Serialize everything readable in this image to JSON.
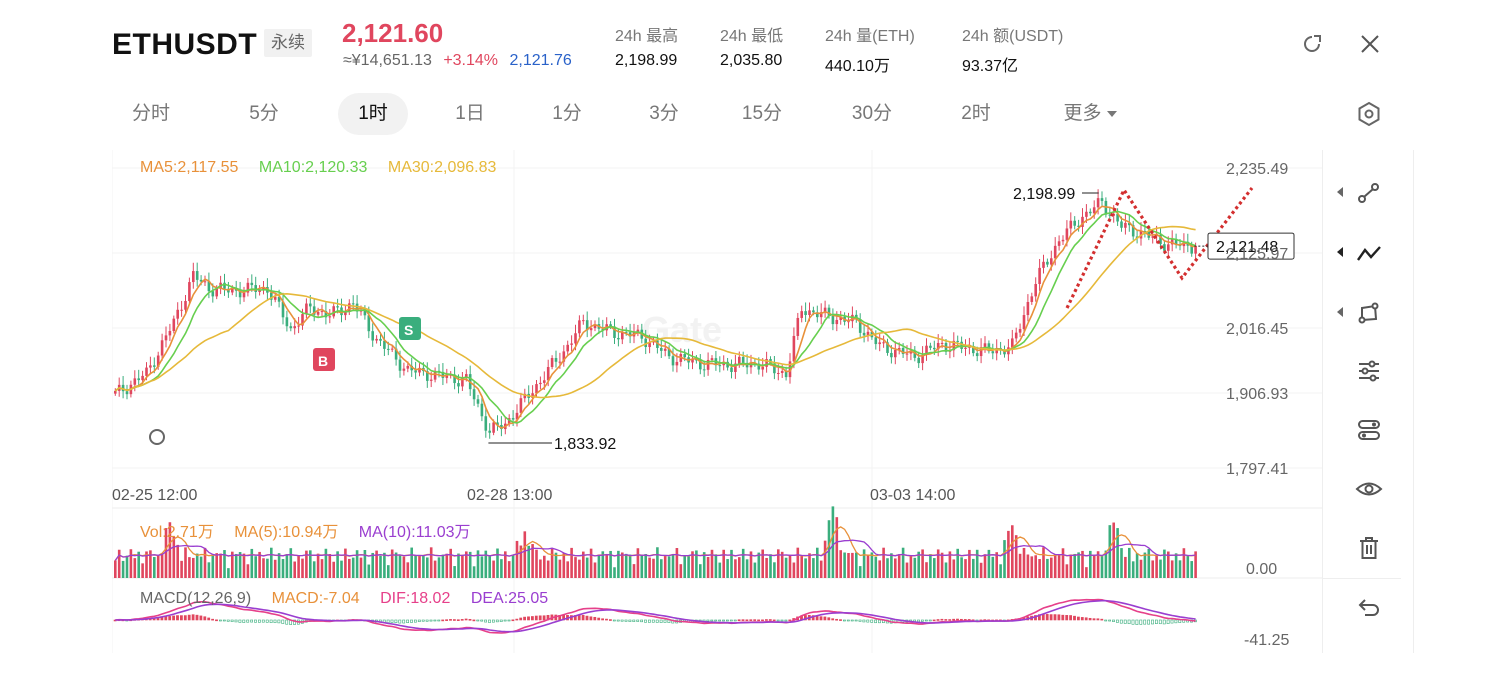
{
  "header": {
    "symbol": "ETHUSDT",
    "contract_tag": "永续",
    "last_price": "2,121.60",
    "cny_price": "≈¥14,651.13",
    "change_pct": "+3.14%",
    "mark_price": "2,121.76",
    "stats": [
      {
        "label": "24h  最高",
        "value": "2,198.99"
      },
      {
        "label": "24h  最低",
        "value": "2,035.80"
      },
      {
        "label": "24h  量(ETH)",
        "value": "440.10万"
      },
      {
        "label": "24h  额(USDT)",
        "value": "93.37亿"
      }
    ],
    "refresh_icon": "refresh-icon",
    "close_icon": "close-icon"
  },
  "tabs": [
    {
      "label": "分时",
      "active": false
    },
    {
      "label": "5分",
      "active": false
    },
    {
      "label": "1时",
      "active": true
    },
    {
      "label": "1日",
      "active": false
    },
    {
      "label": "1分",
      "active": false
    },
    {
      "label": "3分",
      "active": false
    },
    {
      "label": "15分",
      "active": false
    },
    {
      "label": "30分",
      "active": false
    },
    {
      "label": "2时",
      "active": false
    },
    {
      "label": "更多",
      "active": false
    }
  ],
  "settings_icon": "hexagon-settings-icon",
  "legend": {
    "ma5": "MA5:2,117.55",
    "ma10": "MA10:2,120.33",
    "ma30": "MA30:2,096.83",
    "vol": "Vol:2.71万",
    "vol_ma5": "MA(5):10.94万",
    "vol_ma10": "MA(10):11.03万",
    "macd_params": "MACD(12,26,9)",
    "macd": "MACD:-7.04",
    "dif": "DIF:18.02",
    "dea": "DEA:25.05"
  },
  "colors": {
    "up": "#e0465e",
    "down": "#3aae7d",
    "ma5": "#e8913a",
    "ma10": "#67cf4f",
    "ma30": "#e6b93a",
    "dif": "#e6408a",
    "dea": "#9a3ed0",
    "accent_blue": "#2a62c9",
    "pattern": "#d32f2f"
  },
  "chart_data": {
    "type": "candlestick",
    "price_axis_ticks": [
      "2,235.49",
      "2,125.97",
      "2,016.45",
      "1,906.93",
      "1,797.41"
    ],
    "ylim": [
      1797.41,
      2235.49
    ],
    "x_tick_labels": [
      "02-25 12:00",
      "02-28 13:00",
      "03-03 14:00"
    ],
    "high_marker": "2,198.99",
    "low_marker": "1,833.92",
    "current_price_label": "2,121.48",
    "volume_axis_label": "0.00",
    "macd_axis_label": "-41.25",
    "signals": [
      "B",
      "S"
    ],
    "anchors": [
      [
        0,
        1905
      ],
      [
        8,
        1935
      ],
      [
        15,
        2010
      ],
      [
        20,
        2078
      ],
      [
        24,
        2060
      ],
      [
        30,
        2056
      ],
      [
        39,
        2060
      ],
      [
        45,
        2000
      ],
      [
        50,
        2032
      ],
      [
        55,
        2020
      ],
      [
        61,
        2038
      ],
      [
        67,
        1985
      ],
      [
        75,
        1940
      ],
      [
        85,
        1930
      ],
      [
        90,
        1925
      ],
      [
        96,
        1850
      ],
      [
        100,
        1862
      ],
      [
        108,
        1918
      ],
      [
        115,
        1968
      ],
      [
        120,
        2010
      ],
      [
        128,
        1995
      ],
      [
        135,
        1990
      ],
      [
        142,
        1960
      ],
      [
        150,
        1950
      ],
      [
        158,
        1948
      ],
      [
        165,
        1950
      ],
      [
        172,
        1935
      ],
      [
        176,
        2030
      ],
      [
        182,
        2020
      ],
      [
        190,
        2010
      ],
      [
        196,
        1975
      ],
      [
        205,
        1960
      ],
      [
        212,
        1978
      ],
      [
        219,
        1972
      ],
      [
        224,
        1968
      ],
      [
        230,
        1975
      ],
      [
        236,
        2070
      ],
      [
        242,
        2130
      ],
      [
        248,
        2165
      ],
      [
        253,
        2185
      ],
      [
        258,
        2150
      ],
      [
        263,
        2140
      ],
      [
        270,
        2124
      ],
      [
        276,
        2121.6
      ]
    ],
    "volume_spikes": [
      [
        14,
        7
      ],
      [
        105,
        5
      ],
      [
        184,
        11
      ],
      [
        230,
        7
      ],
      [
        256,
        8
      ]
    ]
  },
  "toolbar": [
    {
      "icon": "line-tool-icon",
      "has_submenu": true
    },
    {
      "icon": "trend-wave-tool-icon",
      "has_submenu": true
    },
    {
      "icon": "shape-tool-icon",
      "has_submenu": true
    },
    {
      "icon": "adjust-sliders-icon",
      "has_submenu": false
    },
    {
      "icon": "indicator-settings-icon",
      "has_submenu": false
    },
    {
      "icon": "eye-icon",
      "has_submenu": false
    },
    {
      "icon": "trash-icon",
      "has_submenu": false
    },
    {
      "icon": "undo-icon",
      "has_submenu": false
    }
  ]
}
